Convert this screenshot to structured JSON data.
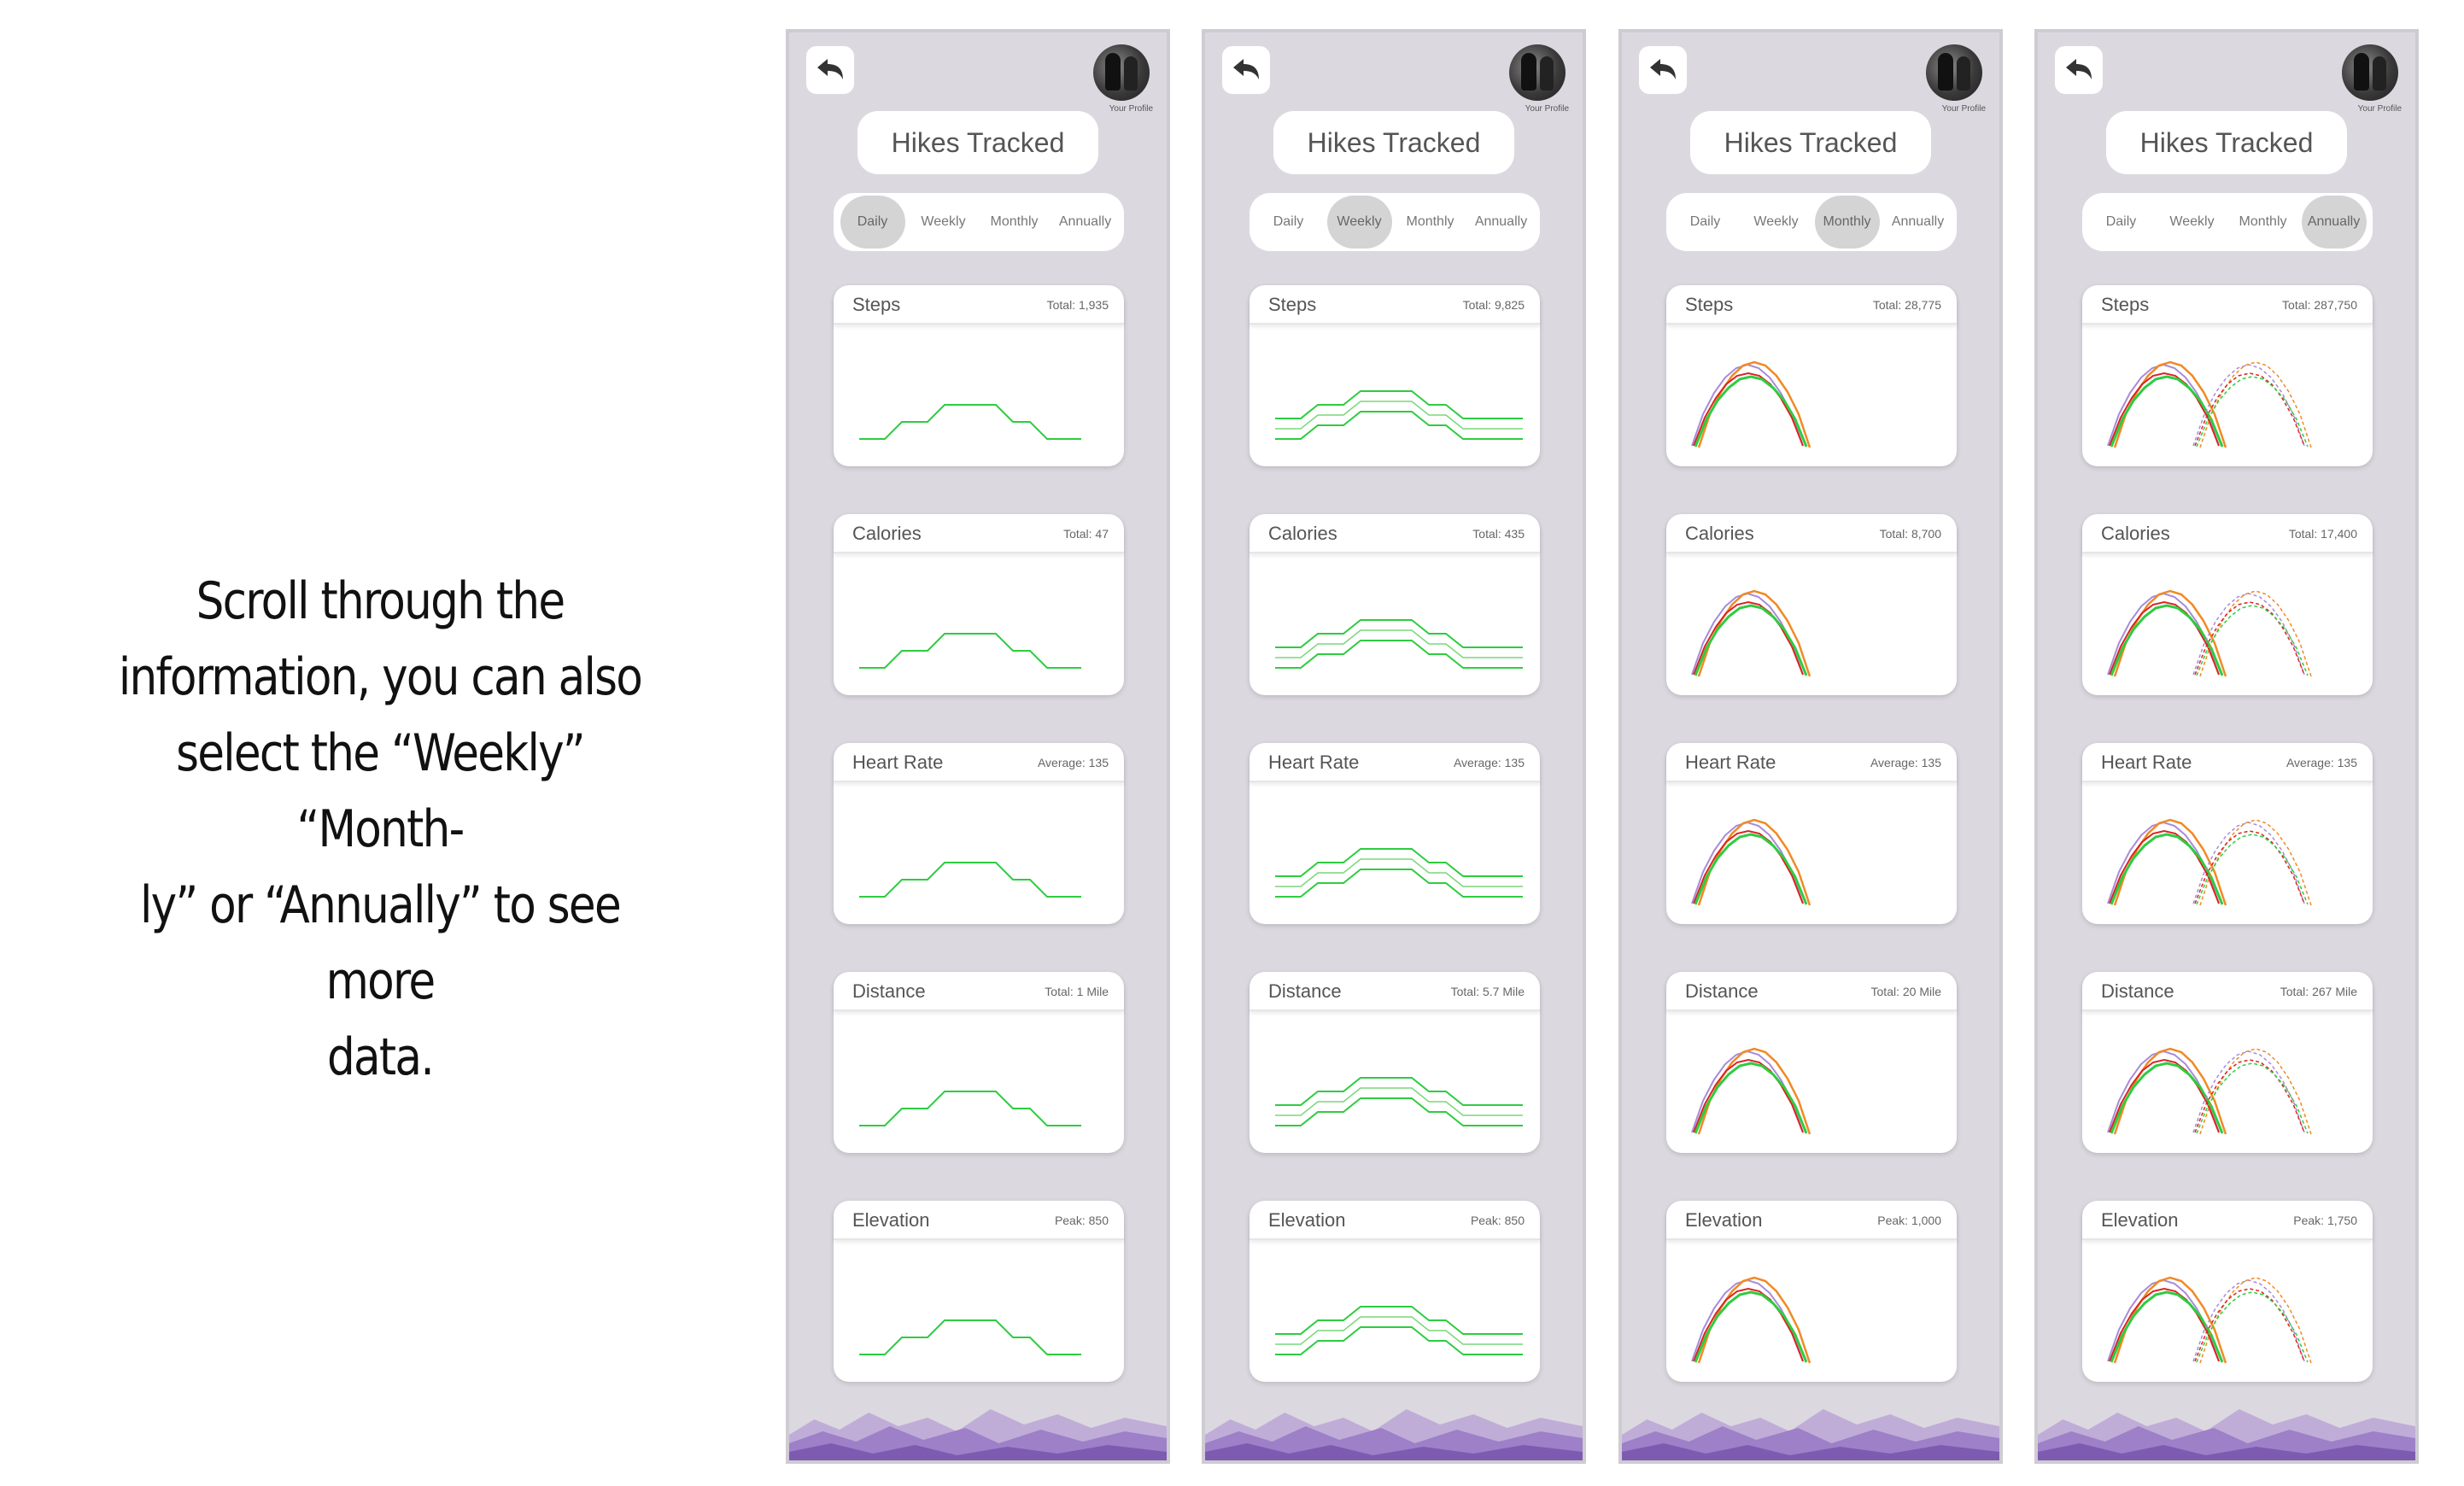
{
  "instruction": "Scroll through the information, you can also select the “Weekly” “Monthly” or “Annually” to see more data.",
  "instruction_lines": [
    "Scroll through the",
    "information, you can also",
    "select the “Weekly” “Month-",
    "ly” or “Annually” to see more",
    "data."
  ],
  "colors": {
    "phone_bg": "#dcd8e0",
    "green": "#2ecc40",
    "orange": "#f08a24",
    "red": "#d22",
    "lavender": "#a78bd8",
    "mountain_light": "#b8a2d6",
    "mountain_mid": "#9d80c8",
    "mountain_dark": "#7d5bb0"
  },
  "icons": {
    "back": "back-arrow-icon",
    "avatar": "profile-avatar"
  },
  "tabs": [
    "Daily",
    "Weekly",
    "Monthly",
    "Annually"
  ],
  "metric_titles": [
    "Steps",
    "Calories",
    "Heart Rate",
    "Distance",
    "Elevation"
  ],
  "screens": [
    {
      "title": "Hikes Tracked",
      "profile_label": "Your Profile",
      "active_tab": 0,
      "chart_style": "daily",
      "cards": [
        {
          "title": "Steps",
          "total": "Total: 1,935"
        },
        {
          "title": "Calories",
          "total": "Total: 47"
        },
        {
          "title": "Heart Rate",
          "total": "Average: 135"
        },
        {
          "title": "Distance",
          "total": "Total: 1 Mile"
        },
        {
          "title": "Elevation",
          "total": "Peak: 850"
        }
      ]
    },
    {
      "title": "Hikes Tracked",
      "profile_label": "Your Profile",
      "active_tab": 1,
      "chart_style": "weekly",
      "cards": [
        {
          "title": "Steps",
          "total": "Total: 9,825"
        },
        {
          "title": "Calories",
          "total": "Total: 435"
        },
        {
          "title": "Heart Rate",
          "total": "Average: 135"
        },
        {
          "title": "Distance",
          "total": "Total: 5.7 Mile"
        },
        {
          "title": "Elevation",
          "total": "Peak: 850"
        }
      ]
    },
    {
      "title": "Hikes Tracked",
      "profile_label": "Your Profile",
      "active_tab": 2,
      "chart_style": "monthly",
      "cards": [
        {
          "title": "Steps",
          "total": "Total: 28,775"
        },
        {
          "title": "Calories",
          "total": "Total: 8,700"
        },
        {
          "title": "Heart Rate",
          "total": "Average: 135"
        },
        {
          "title": "Distance",
          "total": "Total: 20 Mile"
        },
        {
          "title": "Elevation",
          "total": "Peak: 1,000"
        }
      ]
    },
    {
      "title": "Hikes Tracked",
      "profile_label": "Your Profile",
      "active_tab": 3,
      "chart_style": "annually",
      "cards": [
        {
          "title": "Steps",
          "total": "Total: 287,750"
        },
        {
          "title": "Calories",
          "total": "Total: 17,400"
        },
        {
          "title": "Heart Rate",
          "total": "Average: 135"
        },
        {
          "title": "Distance",
          "total": "Total: 267 Mile"
        },
        {
          "title": "Elevation",
          "total": "Peak: 1,750"
        }
      ]
    }
  ]
}
